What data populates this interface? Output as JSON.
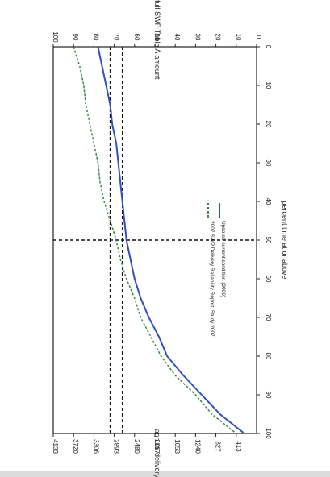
{
  "chart_data": {
    "type": "line",
    "orientation_note": "",
    "x_axis": {
      "label": "percent time at or above",
      "ticks": [
        0,
        10,
        20,
        30,
        40,
        50,
        60,
        70,
        80,
        90,
        100
      ],
      "range": [
        0,
        100
      ]
    },
    "y_axis_left": {
      "label": "annual delivery (taf)",
      "ticks": [
        413,
        827,
        1240,
        1653,
        2067,
        2480,
        2893,
        3306,
        3720,
        4133
      ],
      "range": [
        0,
        4133
      ]
    },
    "y_axis_right": {
      "label": "percent of full SWP Table A amount",
      "ticks": [
        0,
        10,
        20,
        30,
        40,
        50,
        60,
        70,
        80,
        90,
        100
      ],
      "range": [
        0,
        100
      ]
    },
    "series": [
      {
        "name": "2007 SWP Delivery Reliability Report, Study 2007",
        "style": "dashed",
        "color": "#3a8a4c",
        "x": [
          0,
          5,
          10,
          15,
          20,
          25,
          30,
          35,
          40,
          45,
          50,
          55,
          60,
          65,
          70,
          75,
          80,
          85,
          90,
          95,
          100
        ],
        "y": [
          90,
          87,
          85,
          84,
          82,
          80,
          78,
          77,
          75,
          72,
          69,
          67,
          64,
          60,
          57,
          52,
          47,
          40,
          30,
          22,
          10
        ]
      },
      {
        "name": "Updated current condition (2009)",
        "style": "solid",
        "color": "#3050c0",
        "x": [
          0,
          5,
          10,
          15,
          20,
          25,
          30,
          35,
          40,
          45,
          50,
          55,
          60,
          65,
          70,
          75,
          80,
          85,
          90,
          95,
          100
        ],
        "y": [
          78,
          76,
          74,
          72,
          71,
          69,
          68,
          67,
          66,
          65,
          64,
          62,
          60,
          57,
          53,
          48,
          44,
          36,
          27,
          18,
          6
        ]
      }
    ],
    "reference_lines": [
      {
        "axis": "x",
        "value": 50,
        "style": "dashed"
      },
      {
        "axis": "y_right",
        "value": 72,
        "style": "dashed"
      },
      {
        "axis": "y_right",
        "value": 66,
        "style": "dashed"
      }
    ],
    "legend": {
      "placement": "center-right",
      "entries": [
        {
          "label": "2007 SWP Delivery Reliability Report, Study 2007",
          "style": "dashed",
          "color": "#3a8a4c"
        },
        {
          "label": "Updated current condition (2009)",
          "style": "solid",
          "color": "#3050c0"
        }
      ]
    },
    "grid": false
  },
  "colors": {
    "frame": "#222222",
    "series_2007": "#3a8a4c",
    "series_2009": "#3050c0",
    "reference": "#111111",
    "axis_text": "#222222",
    "scan_bottom_strip": "#9a9a9a"
  }
}
